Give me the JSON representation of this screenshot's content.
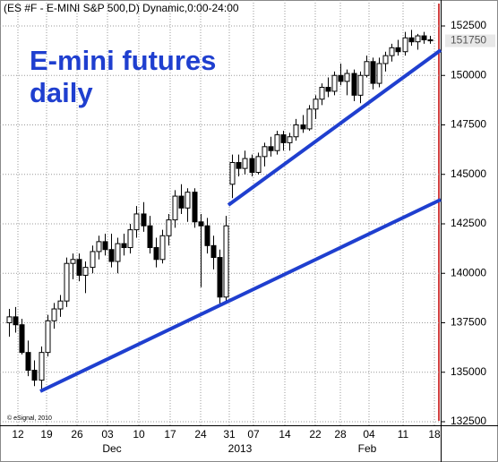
{
  "chart_data": {
    "type": "candlestick",
    "title": "(ES #F - E-MINI S&P 500,D) Dynamic,0:00-24:00",
    "annotation": [
      "E-mini futures",
      "daily"
    ],
    "credit": "© eSignal, 2010",
    "categories": [
      "12",
      "19",
      "26",
      "03",
      "10",
      "17",
      "24",
      "31",
      "07",
      "14",
      "22",
      "28",
      "04",
      "11",
      "18"
    ],
    "months": [
      "Dec",
      "2013",
      "Feb"
    ],
    "open": [
      137500,
      137800,
      137400,
      136000,
      135100,
      134600,
      136000,
      137600,
      138200,
      138600,
      140500,
      140700,
      139900,
      140300,
      141100,
      141600,
      141200,
      140600,
      141500,
      141300,
      142200,
      143000,
      142400,
      141300,
      140700,
      141900,
      142700,
      143900,
      143300,
      144100,
      142600,
      142400,
      141400,
      140800,
      138800,
      144500,
      145600,
      145300,
      145800,
      145100,
      145900,
      146400,
      146200,
      147000,
      146600,
      146900,
      147500,
      147300,
      148300,
      148800,
      149400,
      149200,
      150000,
      149700,
      150100,
      149000,
      150000,
      150700,
      149600,
      150600,
      151000,
      151400,
      151200,
      151900,
      151700,
      152000,
      151800
    ],
    "high": [
      138200,
      138300,
      137700,
      136600,
      135600,
      136300,
      137900,
      138500,
      138900,
      140800,
      141000,
      141000,
      140600,
      141400,
      141900,
      142000,
      142000,
      141800,
      142000,
      142500,
      143400,
      143600,
      142900,
      141800,
      142200,
      143000,
      144200,
      144500,
      144300,
      144300,
      143000,
      142800,
      141900,
      141200,
      142900,
      146000,
      146000,
      146200,
      146000,
      146100,
      146600,
      146900,
      147200,
      147200,
      147100,
      147800,
      148000,
      148500,
      149000,
      149600,
      149900,
      150200,
      150600,
      150300,
      150300,
      150200,
      151000,
      150900,
      150900,
      151200,
      151600,
      151800,
      152200,
      152300,
      152100,
      152200,
      152000
    ],
    "low": [
      136800,
      137000,
      135900,
      134800,
      134300,
      134100,
      135800,
      137200,
      137800,
      138300,
      139700,
      139600,
      139000,
      140000,
      140700,
      140900,
      140300,
      140000,
      140900,
      141000,
      141800,
      142100,
      141000,
      140300,
      140500,
      141400,
      142300,
      143000,
      142600,
      142300,
      139300,
      141000,
      140200,
      138400,
      138500,
      143800,
      144900,
      145000,
      144900,
      145000,
      145400,
      145900,
      146000,
      146200,
      146200,
      146700,
      147100,
      147200,
      147800,
      148500,
      148900,
      149000,
      149500,
      149000,
      148700,
      148600,
      149900,
      149300,
      149400,
      150200,
      150700,
      151000,
      151000,
      151500,
      151300,
      151600,
      151600
    ],
    "close": [
      137800,
      137400,
      136000,
      135100,
      134600,
      136000,
      137600,
      138200,
      138600,
      140500,
      140700,
      139900,
      140300,
      141100,
      141600,
      141200,
      140600,
      141500,
      141300,
      142200,
      143000,
      142400,
      141300,
      140700,
      141900,
      142700,
      143900,
      143300,
      144100,
      142600,
      142400,
      141400,
      140800,
      138800,
      142400,
      145600,
      145300,
      145800,
      145100,
      145900,
      146400,
      146200,
      147000,
      146600,
      146900,
      147500,
      147300,
      148300,
      148800,
      149400,
      149200,
      150000,
      149700,
      150100,
      149000,
      150000,
      150700,
      149600,
      150600,
      151000,
      151400,
      151200,
      151900,
      151700,
      152000,
      151800,
      151750
    ],
    "last_price": 151750,
    "ylim": [
      132000,
      153000
    ],
    "yticks": [
      132500,
      135000,
      137500,
      140000,
      142500,
      145000,
      147500,
      150000,
      152500
    ],
    "grid": true
  }
}
